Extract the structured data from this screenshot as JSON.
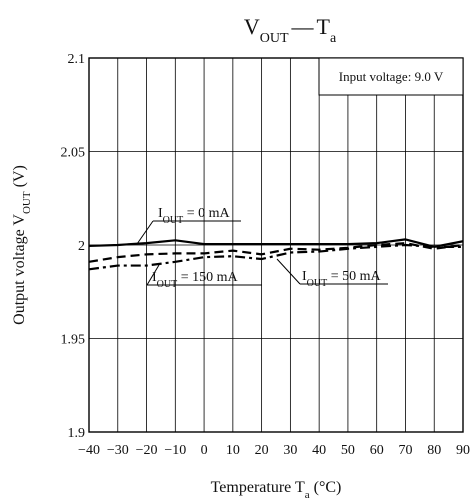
{
  "chart_data": {
    "type": "line",
    "title": {
      "main": "V",
      "main_sub": "OUT",
      "dash": "—",
      "rest": "T",
      "rest_sub": "a"
    },
    "xlabel": {
      "pre": "Temperature  T",
      "sub": "a",
      "post": "  (°C)"
    },
    "ylabel": {
      "pre": "Output voltage  V",
      "sub": "OUT",
      "post": "  (V)"
    },
    "xlim": [
      -40,
      90
    ],
    "ylim": [
      1.9,
      2.1
    ],
    "x_ticks": [
      -40,
      -30,
      -20,
      -10,
      0,
      10,
      20,
      30,
      40,
      50,
      60,
      70,
      80,
      90
    ],
    "y_ticks": [
      1.9,
      1.95,
      2,
      2.05,
      2.1
    ],
    "y_tick_labels": [
      "1.9",
      "1.95",
      "2",
      "2.05",
      "2.1"
    ],
    "grid": {
      "vertical": true,
      "horizontal": true
    },
    "annotation_box": "Input voltage: 9.0 V",
    "series": [
      {
        "name": "I_OUT = 0 mA",
        "label": {
          "pre": "I",
          "sub": "OUT",
          "post": " = 0 mA"
        },
        "style": "solid",
        "x": [
          -40,
          -30,
          -20,
          -10,
          0,
          10,
          20,
          30,
          40,
          50,
          60,
          70,
          80,
          90
        ],
        "y": [
          1.9995,
          2.0,
          2.001,
          2.0025,
          2.0005,
          2.0005,
          2.0005,
          2.0005,
          2.0005,
          2.0005,
          2.001,
          2.003,
          1.999,
          2.002
        ]
      },
      {
        "name": "I_OUT = 50 mA",
        "label": {
          "pre": "I",
          "sub": "OUT",
          "post": " = 50 mA"
        },
        "style": "dashed",
        "x": [
          -40,
          -30,
          -20,
          -10,
          0,
          10,
          20,
          30,
          40,
          50,
          60,
          70,
          80,
          90
        ],
        "y": [
          1.991,
          1.9935,
          1.995,
          1.9955,
          1.9955,
          1.997,
          1.995,
          1.998,
          1.9975,
          1.9985,
          2.0,
          2.001,
          1.998,
          2.0
        ]
      },
      {
        "name": "I_OUT = 150 mA",
        "label": {
          "pre": "I",
          "sub": "OUT",
          "post": " = 150 mA"
        },
        "style": "dash-dot",
        "x": [
          -40,
          -30,
          -20,
          -10,
          0,
          10,
          20,
          30,
          40,
          50,
          60,
          70,
          80,
          90
        ],
        "y": [
          1.987,
          1.989,
          1.989,
          1.991,
          1.9935,
          1.994,
          1.9925,
          1.996,
          1.9965,
          1.998,
          1.999,
          2.0,
          1.999,
          1.999
        ]
      }
    ]
  }
}
